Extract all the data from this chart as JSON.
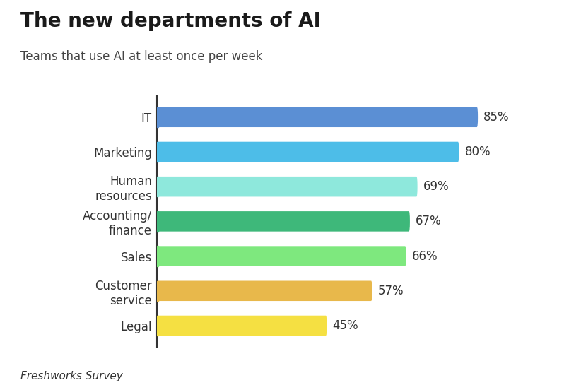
{
  "title": "The new departments of AI",
  "subtitle": "Teams that use AI at least once per week",
  "source": "Freshworks Survey",
  "categories": [
    "IT",
    "Marketing",
    "Human\nresources",
    "Accounting/\nfinance",
    "Sales",
    "Customer\nservice",
    "Legal"
  ],
  "values": [
    85,
    80,
    69,
    67,
    66,
    57,
    45
  ],
  "bar_colors": [
    "#5B8FD4",
    "#4DBDE8",
    "#8EE8DC",
    "#3EB87A",
    "#7EE87E",
    "#E8B84B",
    "#F5E042"
  ],
  "value_labels": [
    "85%",
    "80%",
    "69%",
    "67%",
    "66%",
    "57%",
    "45%"
  ],
  "xlim": [
    0,
    100
  ],
  "background_color": "#FFFFFF",
  "bar_height": 0.58,
  "title_fontsize": 20,
  "subtitle_fontsize": 12,
  "label_fontsize": 12,
  "value_fontsize": 12,
  "source_fontsize": 11
}
